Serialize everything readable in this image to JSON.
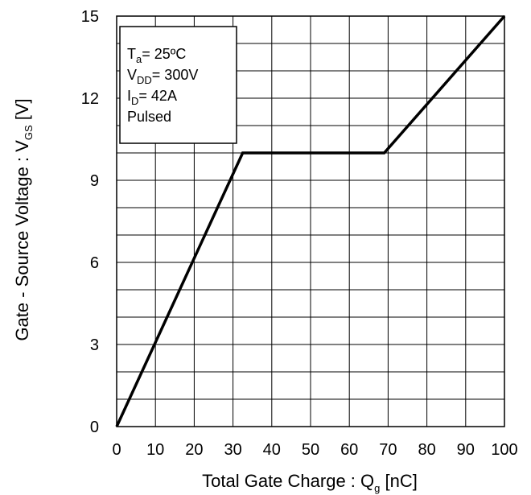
{
  "chart_data": {
    "type": "line",
    "title": "",
    "xlabel": {
      "text": "Total Gate Charge : Q",
      "sub": "g",
      "unit": " [nC]"
    },
    "ylabel": {
      "text": "Gate - Source Voltage : V",
      "sub": "GS",
      "unit": " [V]"
    },
    "xlim": [
      0,
      100
    ],
    "ylim": [
      0,
      15
    ],
    "x_ticks": [
      "0",
      "10",
      "20",
      "30",
      "40",
      "50",
      "60",
      "70",
      "80",
      "90",
      "100"
    ],
    "y_ticks": [
      "0",
      "3",
      "6",
      "9",
      "12",
      "15"
    ],
    "grid": true,
    "series": [
      {
        "x": [
          0,
          32.5,
          69,
          100
        ],
        "y": [
          0,
          10,
          10,
          15
        ]
      }
    ],
    "annotation": {
      "ta": {
        "main": "T",
        "sub": "a",
        "rest": "= 25ºC"
      },
      "vdd": {
        "main": "V",
        "sub": "DD",
        "rest": "= 300V"
      },
      "id": {
        "main": "I",
        "sub": "D",
        "rest": "= 42A"
      },
      "mode": "Pulsed"
    },
    "colors": {
      "line": "#000000",
      "grid": "#000000",
      "background": "#ffffff"
    }
  }
}
